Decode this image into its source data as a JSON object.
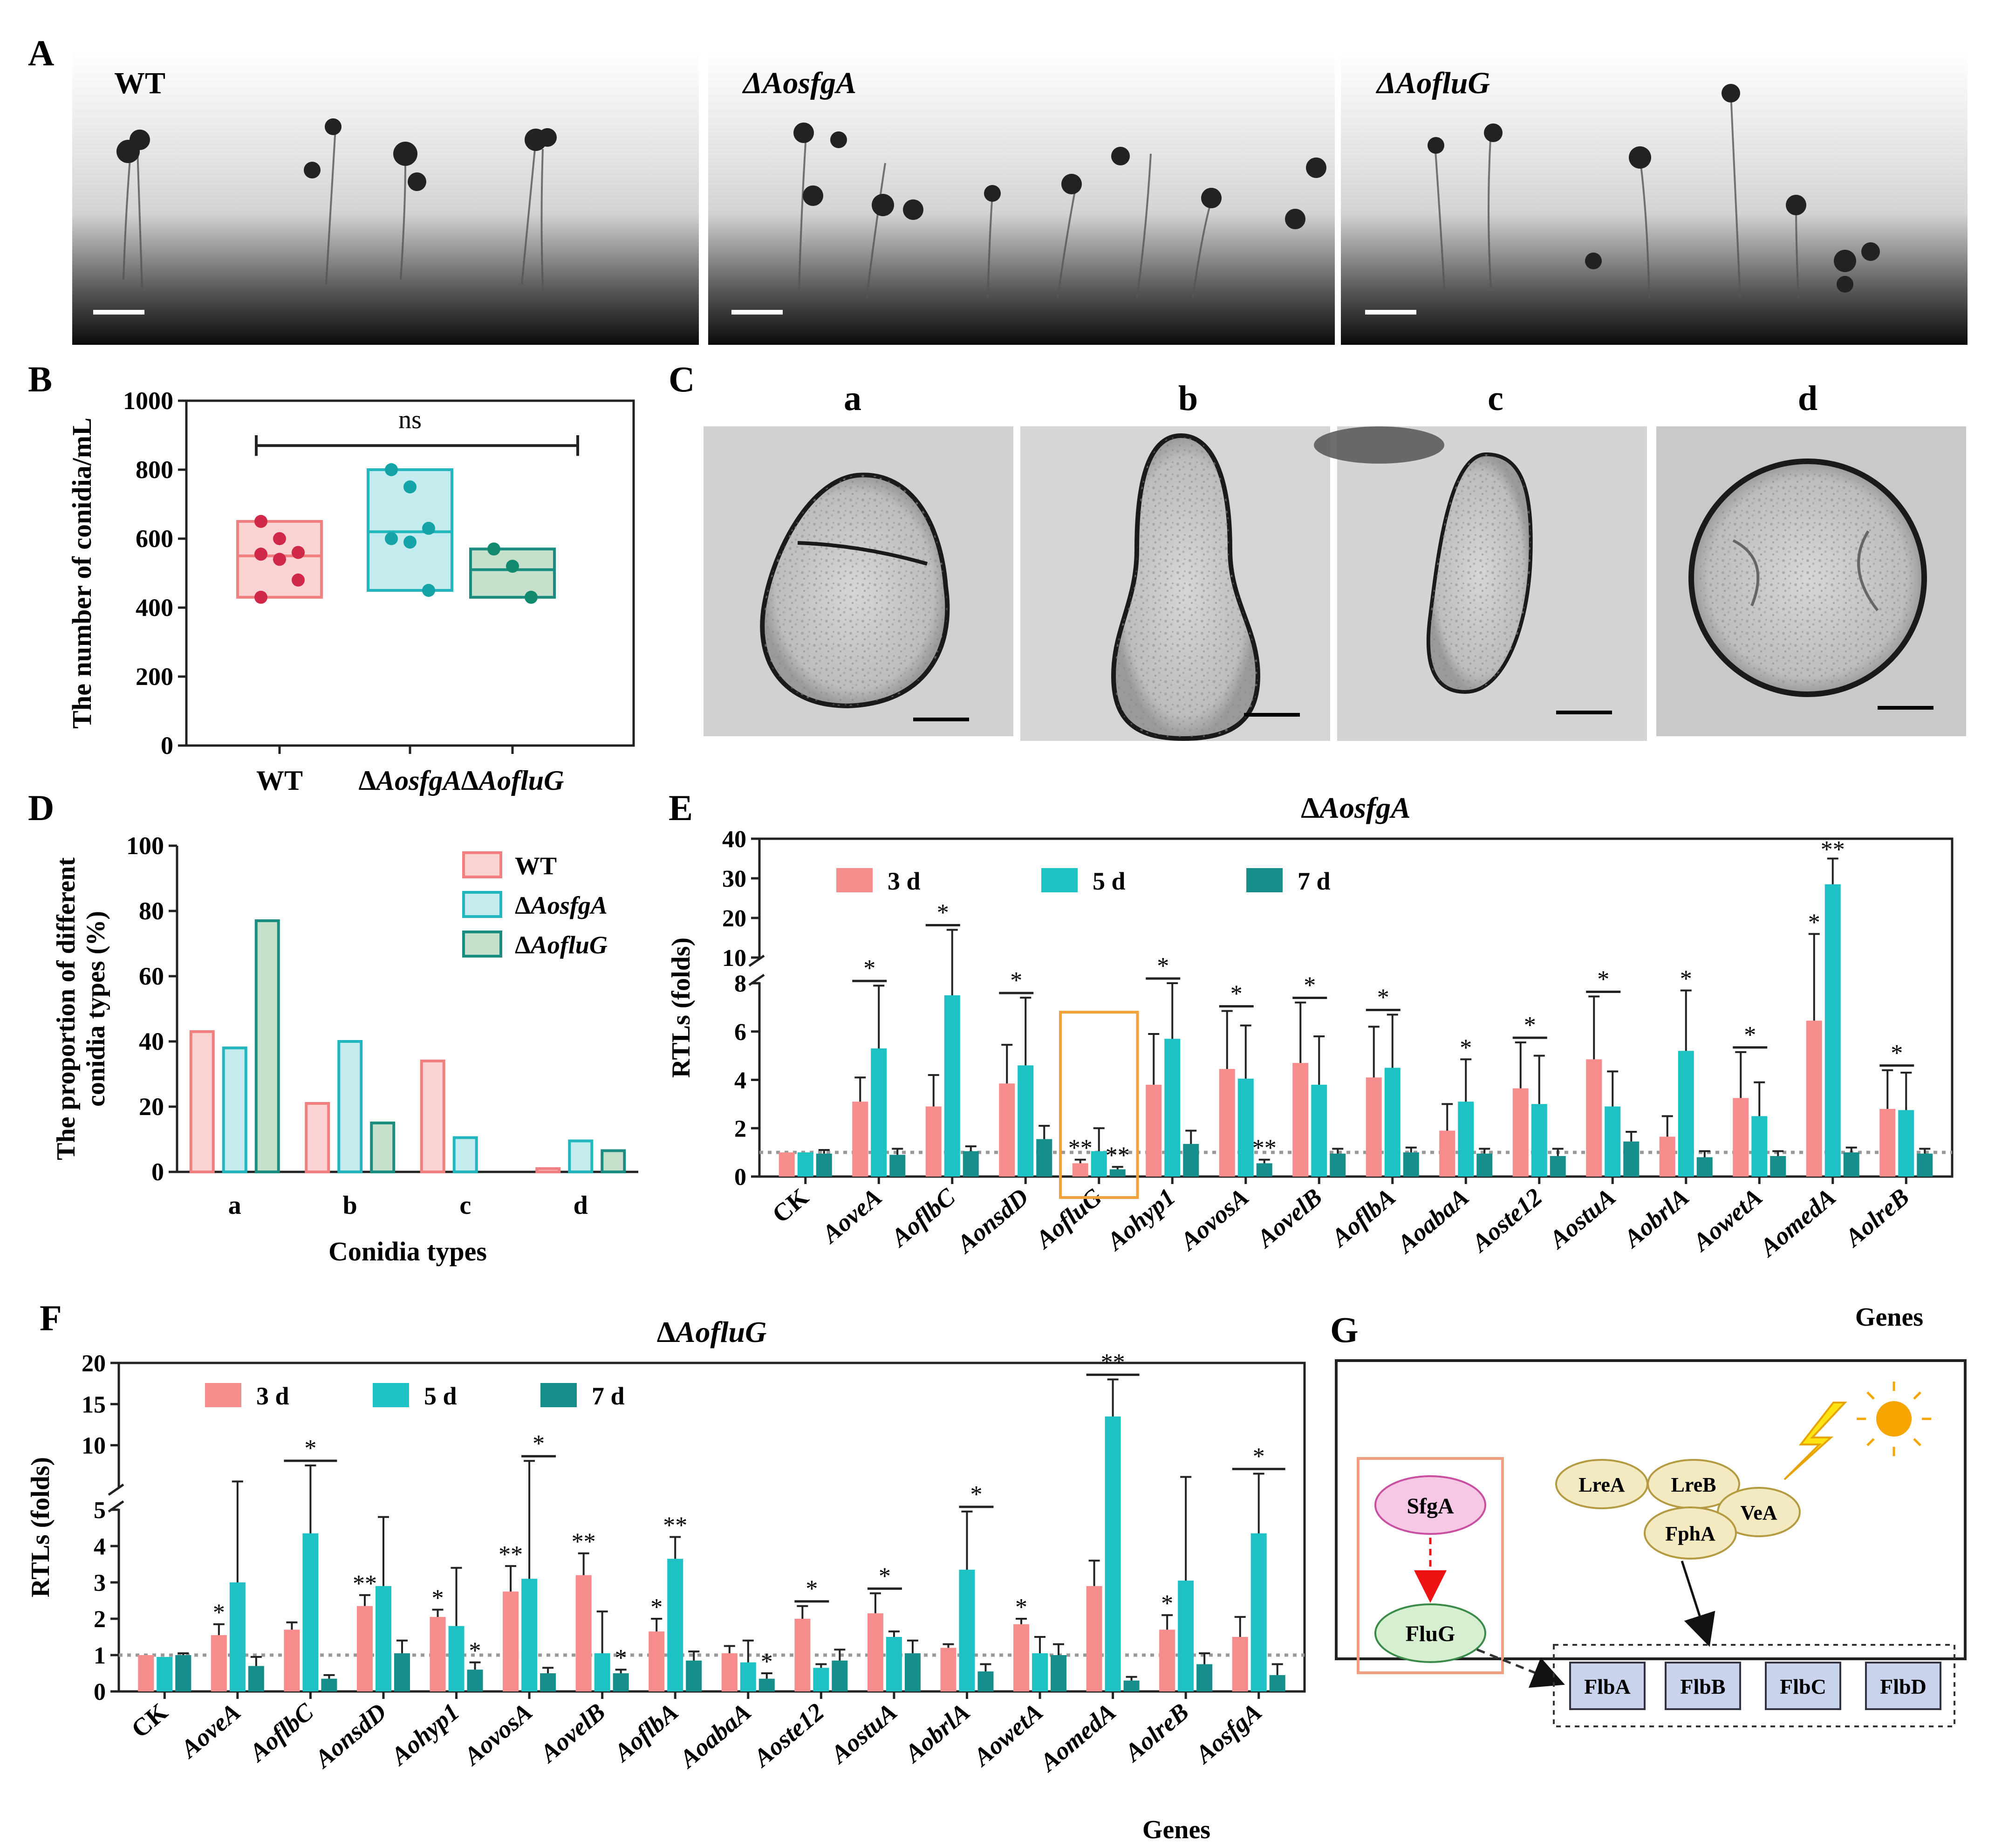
{
  "panel_letters": {
    "A": "A",
    "B": "B",
    "C": "C",
    "D": "D",
    "E": "E",
    "F": "F",
    "G": "G"
  },
  "panel_a": {
    "images": [
      {
        "label": "WT"
      },
      {
        "label": "ΔAosfgA"
      },
      {
        "label": "ΔAofluG"
      }
    ]
  },
  "panel_c": {
    "types": [
      "a",
      "b",
      "c",
      "d"
    ]
  },
  "colors": {
    "wt_fill": "#fbd3d3",
    "wt_line": "#f08080",
    "wt_dot": "#d02848",
    "sfga_fill": "#c4ecee",
    "sfga_line": "#24b6bd",
    "sfga_dot": "#14a3a6",
    "fluG_fill": "#c7e0cc",
    "fluG_line": "#1b8c80",
    "fluG_dot": "#118a6e",
    "bar_3d": "#f68c8c",
    "bar_5d": "#1ec1c4",
    "bar_7d": "#168e8c",
    "highlight": "#f2a23a"
  },
  "chart_data": [
    {
      "id": "B",
      "type": "box",
      "title": "",
      "ylabel": "The number of conidia/mL",
      "ylim": [
        0,
        1000
      ],
      "yticks": [
        0,
        200,
        400,
        600,
        800,
        1000
      ],
      "categories": [
        "WT",
        "ΔAosfgA",
        "ΔAofluG"
      ],
      "groups": [
        {
          "name": "WT",
          "box": [
            430,
            650
          ],
          "median": 550,
          "points": [
            650,
            600,
            560,
            555,
            540,
            480,
            430
          ]
        },
        {
          "name": "ΔAosfgA",
          "box": [
            450,
            800
          ],
          "median": 620,
          "points": [
            800,
            750,
            630,
            600,
            590,
            450
          ]
        },
        {
          "name": "ΔAofluG",
          "box": [
            430,
            570
          ],
          "median": 510,
          "points": [
            570,
            520,
            430
          ]
        }
      ],
      "annotation": "ns"
    },
    {
      "id": "D",
      "type": "bar",
      "ylabel_lines": [
        "The proportion of different",
        "conidia types (%)"
      ],
      "xlabel": "Conidia types",
      "ylim": [
        0,
        100
      ],
      "yticks": [
        0,
        20,
        40,
        60,
        80,
        100
      ],
      "categories": [
        "a",
        "b",
        "c",
        "d"
      ],
      "series": [
        {
          "name": "WT",
          "values": [
            43,
            21,
            34,
            1
          ]
        },
        {
          "name": "ΔAosfgA",
          "values": [
            38,
            40,
            10.5,
            9.5
          ]
        },
        {
          "name": "ΔAofluG",
          "values": [
            77,
            15,
            0,
            6.5
          ]
        }
      ],
      "legend_position": "top-right"
    },
    {
      "id": "E",
      "type": "bar",
      "title": "ΔAosfgA",
      "ylabel": "RTLs (folds)",
      "xlabel": "Genes",
      "ylim": [
        0,
        40
      ],
      "axis_break": {
        "lower": [
          0,
          8
        ],
        "upper": [
          10,
          40
        ]
      },
      "yticks_lower": [
        0,
        2,
        4,
        6,
        8
      ],
      "yticks_upper": [
        10,
        20,
        30,
        40
      ],
      "categories": [
        "CK",
        "AoveA",
        "AoflbC",
        "AonsdD",
        "AofluG",
        "Aohyp1",
        "AovosA",
        "AovelB",
        "AoflbA",
        "AoabaA",
        "Aoste12",
        "AostuA",
        "AobrlA",
        "AowetA",
        "AomedA",
        "AolreB"
      ],
      "series": [
        {
          "name": "3 d",
          "values": [
            1,
            3.1,
            2.9,
            3.85,
            0.55,
            3.8,
            4.45,
            4.7,
            4.1,
            1.9,
            3.65,
            4.85,
            1.65,
            3.25,
            6.45,
            2.8
          ],
          "errors": [
            0,
            1,
            1.3,
            1.6,
            0.15,
            2.1,
            2.4,
            2.5,
            2.1,
            1.1,
            1.9,
            2.6,
            0.85,
            1.9,
            9.5,
            1.6
          ]
        },
        {
          "name": "5 d",
          "values": [
            1,
            5.3,
            7.5,
            4.6,
            1.05,
            5.7,
            4.05,
            3.8,
            4.5,
            3.1,
            3,
            2.9,
            5.2,
            2.5,
            28.5,
            2.75
          ],
          "errors": [
            0,
            2.6,
            9.5,
            2.8,
            0.95,
            2.3,
            2.2,
            2,
            2.2,
            1.75,
            2,
            1.45,
            2.5,
            1.4,
            6.5,
            1.55
          ]
        },
        {
          "name": "7 d",
          "values": [
            0.95,
            0.9,
            1.05,
            1.55,
            0.3,
            1.35,
            0.55,
            0.95,
            1,
            0.95,
            0.85,
            1.45,
            0.8,
            0.85,
            1,
            0.95
          ],
          "errors": [
            0.15,
            0.25,
            0.2,
            0.55,
            0.1,
            0.55,
            0.15,
            0.2,
            0.2,
            0.2,
            0.3,
            0.4,
            0.25,
            0.2,
            0.2,
            0.2
          ]
        }
      ],
      "significance": [
        {
          "category": "AoveA",
          "text": "*",
          "bracket": "3 d–5 d"
        },
        {
          "category": "AoflbC",
          "text": "*",
          "bracket": "3 d–5 d"
        },
        {
          "category": "AonsdD",
          "text": "*",
          "bracket": "3 d–5 d"
        },
        {
          "category": "AofluG",
          "text": "**",
          "series": "3 d"
        },
        {
          "category": "AofluG",
          "text": "**",
          "series": "7 d"
        },
        {
          "category": "Aohyp1",
          "text": "*",
          "bracket": "3 d–5 d"
        },
        {
          "category": "AovosA",
          "text": "*",
          "bracket": "3 d–5 d"
        },
        {
          "category": "AovosA",
          "text": "**",
          "series": "7 d"
        },
        {
          "category": "AovelB",
          "text": "*",
          "bracket": "3 d–5 d"
        },
        {
          "category": "AoflbA",
          "text": "*",
          "bracket": "3 d–5 d"
        },
        {
          "category": "AoabaA",
          "text": "*",
          "series": "5 d"
        },
        {
          "category": "Aoste12",
          "text": "*",
          "bracket": "3 d–5 d"
        },
        {
          "category": "AostuA",
          "text": "*",
          "bracket": "3 d–5 d"
        },
        {
          "category": "AobrlA",
          "text": "*",
          "series": "5 d"
        },
        {
          "category": "AowetA",
          "text": "*",
          "bracket": "3 d–5 d"
        },
        {
          "category": "AomedA",
          "text": "*",
          "series": "3 d"
        },
        {
          "category": "AomedA",
          "text": "**",
          "series": "5 d"
        },
        {
          "category": "AolreB",
          "text": "*",
          "bracket": "3 d–5 d"
        }
      ],
      "highlight_category": "AofluG",
      "reference_line": 1
    },
    {
      "id": "F",
      "type": "bar",
      "title": "ΔAofluG",
      "ylabel": "RTLs (folds)",
      "xlabel": "Genes",
      "ylim": [
        0,
        20
      ],
      "axis_break": {
        "lower": [
          0,
          5
        ],
        "upper": [
          5,
          20
        ]
      },
      "yticks_lower": [
        0,
        1,
        2,
        3,
        4,
        5
      ],
      "yticks_upper": [
        5,
        10,
        15,
        20
      ],
      "categories": [
        "CK",
        "AoveA",
        "AoflbC",
        "AonsdD",
        "Aohyp1",
        "AovosA",
        "AovelB",
        "AoflbA",
        "AoabaA",
        "Aoste12",
        "AostuA",
        "AobrlA",
        "AowetA",
        "AomedA",
        "AolreB",
        "AosfgA"
      ],
      "series": [
        {
          "name": "3 d",
          "values": [
            1,
            1.55,
            1.7,
            2.35,
            2.05,
            2.75,
            3.2,
            1.65,
            1.05,
            2,
            2.15,
            1.2,
            1.85,
            2.9,
            1.7,
            1.5
          ],
          "errors": [
            0,
            0.3,
            0.2,
            0.3,
            0.2,
            0.7,
            0.6,
            0.35,
            0.2,
            0.35,
            0.55,
            0.1,
            0.15,
            0.7,
            0.4,
            0.55
          ]
        },
        {
          "name": "5 d",
          "values": [
            0.95,
            3,
            4.35,
            2.9,
            1.8,
            3.1,
            1.05,
            3.65,
            0.8,
            0.65,
            1.5,
            3.35,
            1.05,
            13.5,
            3.05,
            4.35
          ],
          "errors": [
            0,
            2.6,
            3.2,
            1.9,
            1.6,
            5,
            1.15,
            0.6,
            0.6,
            0.1,
            0.15,
            1.6,
            0.45,
            4.5,
            3.1,
            2.2
          ]
        },
        {
          "name": "7 d",
          "values": [
            1,
            0.7,
            0.35,
            1.05,
            0.6,
            0.5,
            0.5,
            0.85,
            0.35,
            0.85,
            1.05,
            0.55,
            1,
            0.3,
            0.75,
            0.45
          ],
          "errors": [
            0.05,
            0.25,
            0.1,
            0.35,
            0.2,
            0.15,
            0.1,
            0.25,
            0.15,
            0.3,
            0.35,
            0.2,
            0.3,
            0.1,
            0.3,
            0.3
          ]
        }
      ],
      "significance": [
        {
          "category": "AoveA",
          "text": "*",
          "series": "3 d"
        },
        {
          "category": "AoflbC",
          "text": "*",
          "bracket": "3 d–7 d"
        },
        {
          "category": "AonsdD",
          "text": "**",
          "series": "3 d"
        },
        {
          "category": "Aohyp1",
          "text": "*",
          "series": "3 d"
        },
        {
          "category": "Aohyp1",
          "text": "*",
          "series": "7 d"
        },
        {
          "category": "AovosA",
          "text": "**",
          "series": "3 d"
        },
        {
          "category": "AovosA",
          "text": "*",
          "bracket": "5 d–7 d"
        },
        {
          "category": "AovelB",
          "text": "**",
          "series": "3 d"
        },
        {
          "category": "AovelB",
          "text": "*",
          "series": "7 d"
        },
        {
          "category": "AoflbA",
          "text": "*",
          "series": "3 d"
        },
        {
          "category": "AoflbA",
          "text": "**",
          "series": "5 d"
        },
        {
          "category": "AoabaA",
          "text": "*",
          "series": "7 d"
        },
        {
          "category": "Aoste12",
          "text": "*",
          "bracket": "3 d–5 d"
        },
        {
          "category": "AostuA",
          "text": "*",
          "bracket": "3 d–5 d"
        },
        {
          "category": "AobrlA",
          "text": "*",
          "bracket": "5 d–7 d"
        },
        {
          "category": "AowetA",
          "text": "*",
          "series": "3 d"
        },
        {
          "category": "AomedA",
          "text": "**",
          "bracket": "3 d–7 d"
        },
        {
          "category": "AolreB",
          "text": "*",
          "series": "3 d"
        },
        {
          "category": "AosfgA",
          "text": "*",
          "bracket": "3 d–7 d"
        }
      ],
      "reference_line": 1
    }
  ],
  "panel_g": {
    "nodes": {
      "sfga": "SfgA",
      "fluG": "FluG",
      "lreA": "LreA",
      "lreB": "LreB",
      "veA": "VeA",
      "fphA": "FphA"
    },
    "targets": [
      "FlbA",
      "FlbB",
      "FlbC",
      "FlbD"
    ]
  }
}
